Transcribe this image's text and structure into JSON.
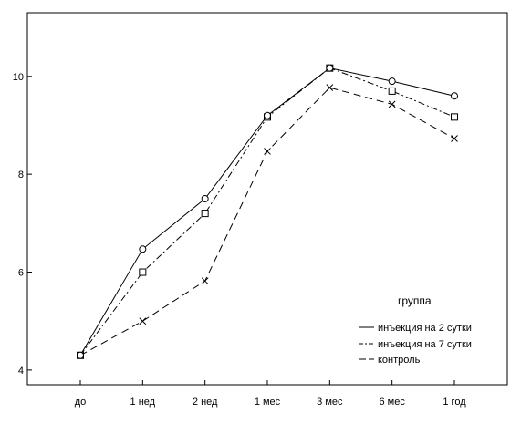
{
  "chart_data": {
    "type": "line",
    "title": "",
    "xlabel": "",
    "ylabel": "",
    "categories": [
      "до",
      "1 нед",
      "2 нед",
      "1 мес",
      "3 мес",
      "6 мес",
      "1 год"
    ],
    "yticks": [
      "4",
      "6",
      "8",
      "10"
    ],
    "ylim": [
      3.7,
      11.3
    ],
    "grid": false,
    "legend": {
      "title": "группа",
      "position": "bottom-right"
    },
    "series": [
      {
        "name": "инъекция на 2 сутки",
        "marker": "circle",
        "dash": "solid",
        "values": [
          4.3,
          6.47,
          7.5,
          9.2,
          10.17,
          9.9,
          9.6
        ]
      },
      {
        "name": "инъекция на 7 сутки",
        "marker": "square",
        "dash": "dash-dot",
        "values": [
          4.3,
          6.0,
          7.2,
          9.17,
          10.17,
          9.7,
          9.17
        ]
      },
      {
        "name": "контроль",
        "marker": "x",
        "dash": "dashed",
        "values": [
          4.3,
          5.0,
          5.82,
          8.47,
          9.77,
          9.43,
          8.73
        ]
      }
    ]
  }
}
